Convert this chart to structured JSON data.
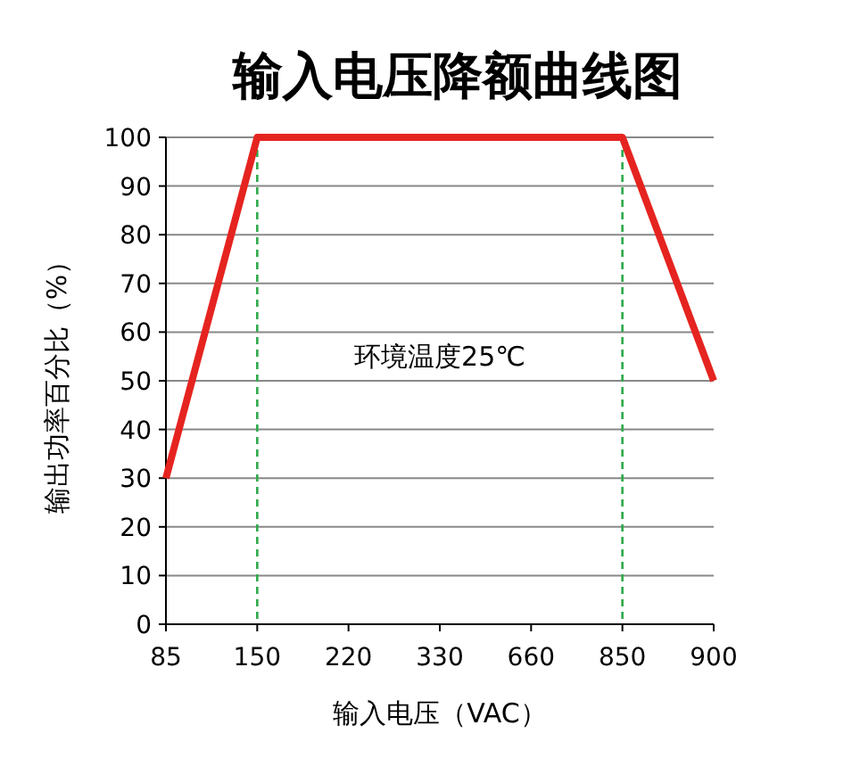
{
  "chart_data": {
    "type": "line",
    "title": "输入电压降额曲线图",
    "xlabel": "输入电压（VAC）",
    "ylabel": "输出功率百分比（%）",
    "categories": [
      "85",
      "150",
      "220",
      "330",
      "660",
      "850",
      "900"
    ],
    "series": [
      {
        "color": "#e52420",
        "values": [
          30,
          100,
          100,
          100,
          100,
          100,
          50
        ]
      }
    ],
    "ylim": [
      0,
      100
    ],
    "yticks": [
      0,
      10,
      20,
      30,
      40,
      50,
      60,
      70,
      80,
      90,
      100
    ],
    "grid": "y",
    "line_style": "solid",
    "ref_lines": [
      {
        "axis": "x",
        "value": "150",
        "color": "#2eaa4a",
        "line_style": "dashed"
      },
      {
        "axis": "x",
        "value": "850",
        "color": "#2eaa4a",
        "line_style": "dashed"
      }
    ],
    "annotations": [
      "环境温度25℃"
    ]
  }
}
